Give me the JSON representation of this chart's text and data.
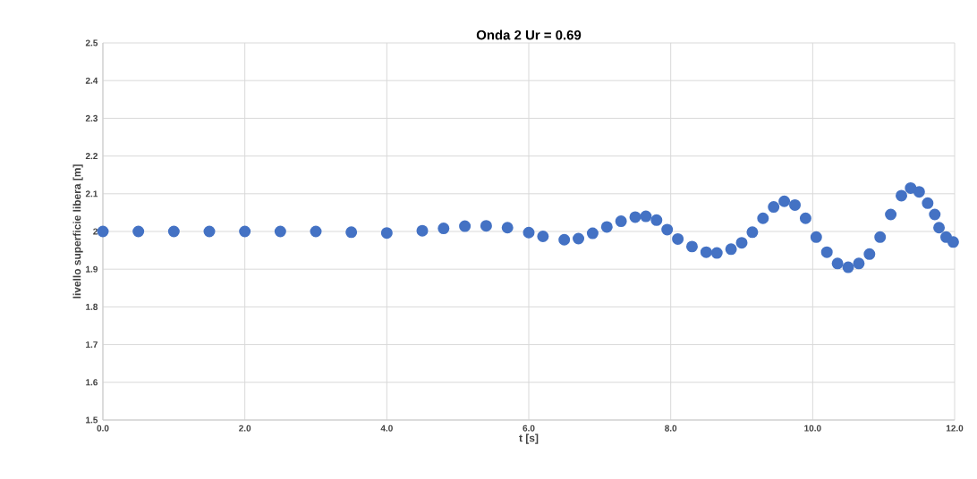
{
  "chart_data": {
    "type": "scatter",
    "title": "Onda 2  Ur = 0.69",
    "xlabel": "t [s]",
    "ylabel": "livello superficie libera [m]",
    "series": [
      {
        "color": "#4472c4",
        "x": [
          0.0,
          0.5,
          1.0,
          1.5,
          2.0,
          2.5,
          3.0,
          3.5,
          4.0,
          4.5,
          4.8,
          5.1,
          5.4,
          5.7,
          6.0,
          6.2,
          6.5,
          6.7,
          6.9,
          7.1,
          7.3,
          7.5,
          7.65,
          7.8,
          7.95,
          8.1,
          8.3,
          8.5,
          8.65,
          8.85,
          9.0,
          9.15,
          9.3,
          9.45,
          9.6,
          9.75,
          9.9,
          10.05,
          10.2,
          10.35,
          10.5,
          10.65,
          10.8,
          10.95,
          11.1,
          11.25,
          11.38,
          11.5,
          11.62,
          11.72,
          11.78,
          11.88,
          11.98
        ],
        "values": [
          2.0,
          2.0,
          2.0,
          2.0,
          2.0,
          2.0,
          2.0,
          1.998,
          1.996,
          2.002,
          2.008,
          2.014,
          2.015,
          2.01,
          1.997,
          1.987,
          1.978,
          1.981,
          1.995,
          2.012,
          2.027,
          2.038,
          2.04,
          2.03,
          2.005,
          1.98,
          1.96,
          1.945,
          1.943,
          1.953,
          1.97,
          1.998,
          2.035,
          2.065,
          2.08,
          2.07,
          2.035,
          1.985,
          1.945,
          1.915,
          1.905,
          1.915,
          1.94,
          1.985,
          2.045,
          2.095,
          2.115,
          2.105,
          2.075,
          2.045,
          2.01,
          1.985,
          1.972
        ]
      }
    ],
    "xlim": [
      0,
      12
    ],
    "ylim": [
      1.5,
      2.5
    ],
    "xticks": [
      {
        "value": 0,
        "label": "0.0"
      },
      {
        "value": 2,
        "label": "2.0"
      },
      {
        "value": 4,
        "label": "4.0"
      },
      {
        "value": 6,
        "label": "6.0"
      },
      {
        "value": 8,
        "label": "8.0"
      },
      {
        "value": 10,
        "label": "10.0"
      },
      {
        "value": 12,
        "label": "12.0"
      }
    ],
    "yticks": [
      1.5,
      1.6,
      1.7,
      1.8,
      1.9,
      2,
      2.1,
      2.2,
      2.3,
      2.4,
      2.5
    ],
    "grid": true
  }
}
